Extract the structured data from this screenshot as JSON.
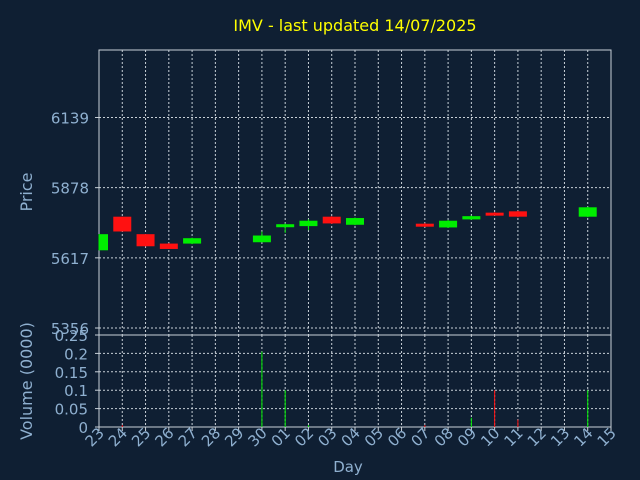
{
  "chart_data": [
    {
      "type": "candlestick",
      "title": "IMV - last updated 14/07/2025",
      "xlabel": "Day",
      "ylabel": "Price",
      "x_ticks": [
        "23",
        "24",
        "25",
        "26",
        "27",
        "28",
        "29",
        "30",
        "01",
        "02",
        "03",
        "04",
        "05",
        "06",
        "07",
        "08",
        "09",
        "10",
        "11",
        "12",
        "13",
        "14",
        "15"
      ],
      "y_ticks": [
        5356,
        5617,
        5878,
        6139
      ],
      "ylim": [
        5330,
        6390
      ],
      "grid": true,
      "up_color": "#00ee00",
      "down_color": "#ff1111",
      "candles": [
        {
          "day": "23",
          "open": 5645,
          "close": 5705,
          "high": 5705,
          "low": 5645
        },
        {
          "day": "24",
          "open": 5770,
          "close": 5715,
          "high": 5770,
          "low": 5715
        },
        {
          "day": "25",
          "open": 5705,
          "close": 5660,
          "high": 5705,
          "low": 5660
        },
        {
          "day": "26",
          "open": 5670,
          "close": 5650,
          "high": 5672,
          "low": 5650
        },
        {
          "day": "27",
          "open": 5670,
          "close": 5690,
          "high": 5692,
          "low": 5668
        },
        {
          "day": "30",
          "open": 5675,
          "close": 5700,
          "high": 5715,
          "low": 5675
        },
        {
          "day": "01",
          "open": 5735,
          "close": 5742,
          "high": 5745,
          "low": 5710
        },
        {
          "day": "02",
          "open": 5735,
          "close": 5755,
          "high": 5760,
          "low": 5720
        },
        {
          "day": "03",
          "open": 5770,
          "close": 5745,
          "high": 5772,
          "low": 5743
        },
        {
          "day": "04",
          "open": 5740,
          "close": 5765,
          "high": 5767,
          "low": 5738
        },
        {
          "day": "07",
          "open": 5744,
          "close": 5734,
          "high": 5746,
          "low": 5732
        },
        {
          "day": "08",
          "open": 5730,
          "close": 5755,
          "high": 5758,
          "low": 5728
        },
        {
          "day": "09",
          "open": 5760,
          "close": 5772,
          "high": 5774,
          "low": 5758
        },
        {
          "day": "10",
          "open": 5785,
          "close": 5781,
          "high": 5787,
          "low": 5779
        },
        {
          "day": "11",
          "open": 5790,
          "close": 5770,
          "high": 5792,
          "low": 5768
        },
        {
          "day": "14",
          "open": 5770,
          "close": 5805,
          "high": 5807,
          "low": 5768
        }
      ]
    },
    {
      "type": "bar",
      "xlabel": "Day",
      "ylabel": "Volume (0000)",
      "y_ticks": [
        "0",
        "0.05",
        "0.1",
        "0.15",
        "0.2",
        "0.25"
      ],
      "ylim": [
        0,
        0.25
      ],
      "grid": true,
      "volumes": [
        {
          "day": "24",
          "value": 0.005,
          "direction": "down"
        },
        {
          "day": "30",
          "value": 0.205,
          "direction": "up"
        },
        {
          "day": "01",
          "value": 0.1,
          "direction": "up"
        },
        {
          "day": "02",
          "value": 0.005,
          "direction": "up"
        },
        {
          "day": "07",
          "value": 0.005,
          "direction": "down"
        },
        {
          "day": "09",
          "value": 0.025,
          "direction": "up"
        },
        {
          "day": "10",
          "value": 0.1,
          "direction": "down"
        },
        {
          "day": "11",
          "value": 0.02,
          "direction": "down"
        },
        {
          "day": "14",
          "value": 0.1,
          "direction": "up"
        }
      ]
    }
  ],
  "colors": {
    "background": "#0f1f33",
    "title": "#ffff00",
    "axis_text": "#8fb0d0",
    "grid": "#c8d0d8",
    "frame": "#c8d0d8"
  }
}
